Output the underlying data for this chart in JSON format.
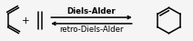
{
  "background_color": "#f5f5f5",
  "text_color": "#000000",
  "forward_label": "Diels-Alder",
  "reverse_label": "retro-Diels-Alder",
  "line_width": 1.1,
  "arrow_color": "#000000",
  "structure_color": "#000000",
  "font_size": 6.2,
  "fig_width": 2.12,
  "fig_height": 0.45,
  "dpi": 100
}
